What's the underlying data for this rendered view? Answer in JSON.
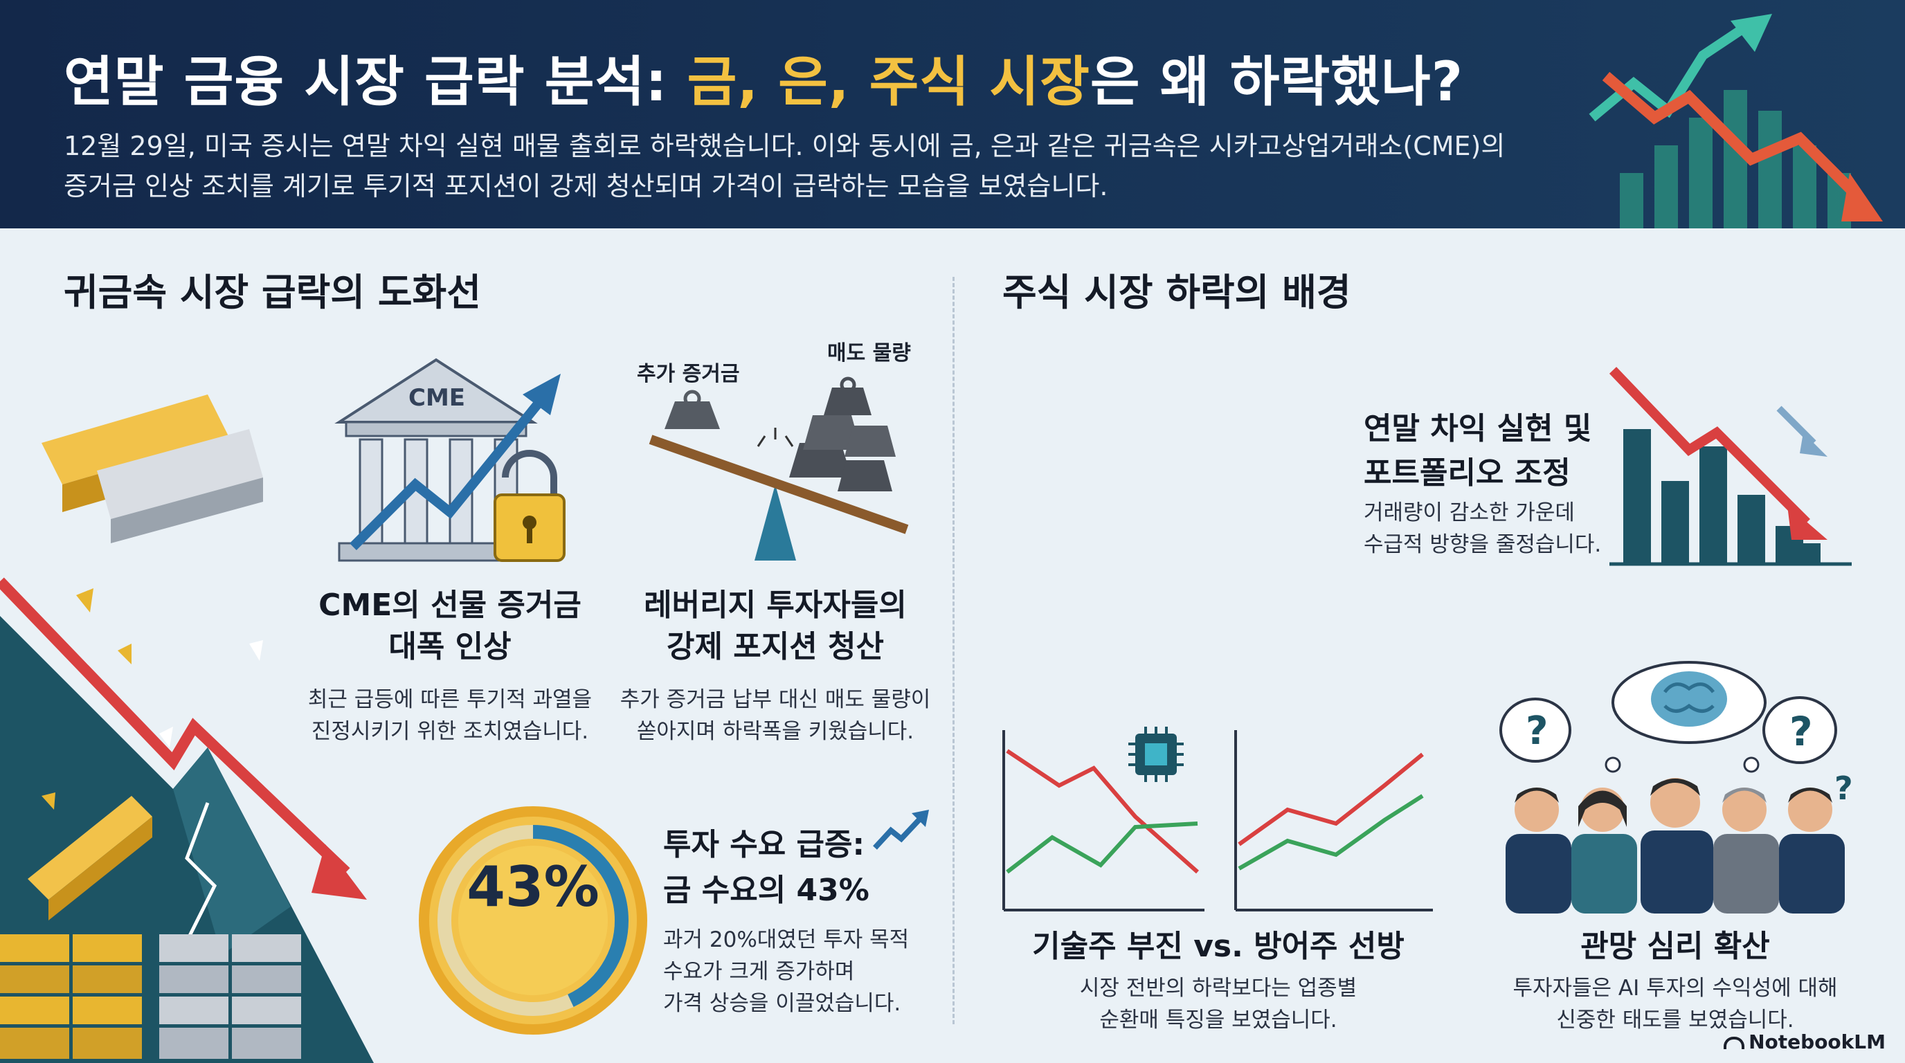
{
  "header": {
    "title_part1": "연말 금융 시장 급락 분석: ",
    "title_highlight": "금, 은, 주식 시장",
    "title_part2": "은 왜 하락했나?",
    "subtitle_line1": "12월 29일, 미국 증시는 연말 차익 실현 매물 출회로 하락했습니다. 이와 동시에 금, 은과 같은 귀금속은 시카고상업거래소(CME)의",
    "subtitle_line2": "증거금 인상 조치를 계기로 투기적 포지션이 강제 청산되며 가격이 급락하는 모습을 보였습니다."
  },
  "left_section": {
    "title": "귀금속 시장 급락의 도화선",
    "cme_card": {
      "icon_label": "CME",
      "title_line1": "CME의 선물 증거금",
      "title_line2": "대폭 인상",
      "desc_line1": "최근 급등에 따른 투기적 과열을",
      "desc_line2": "진정시키기 위한 조치였습니다."
    },
    "leverage_card": {
      "label_left": "추가 증거금",
      "label_right": "매도 물량",
      "title_line1": "레버리지 투자자들의",
      "title_line2": "강제 포지션 청산",
      "desc_line1": "추가 증거금 납부 대신 매도 물량이",
      "desc_line2": "쏟아지며 하락폭을 키웠습니다."
    },
    "demand_card": {
      "percent_label": "43%",
      "percent_value": 43,
      "title_line1": "투자 수요 급증:",
      "title_line2": "금 수요의 43%",
      "desc_line1": "과거 20%대였던 투자 목적",
      "desc_line2": "수요가 크게 증가하며",
      "desc_line3": "가격 상승을 이끌었습니다."
    }
  },
  "right_section": {
    "title": "주식 시장 하락의 배경",
    "profit_card": {
      "title_line1": "연말 차익 실현 및",
      "title_line2": "포트폴리오 조정",
      "desc_line1": "거래량이 감소한 가운데",
      "desc_line2": "수급적 방향을 줄정습니다."
    },
    "tech_card": {
      "title": "기술주 부진 vs. 방어주 선방",
      "desc_line1": "시장 전반의 하락보다는 업종별",
      "desc_line2": "순환매 특징을 보였습니다."
    },
    "sentiment_card": {
      "title": "관망 심리 확산",
      "desc_line1": "투자자들은 AI 투자의 수익성에 대해",
      "desc_line2": "신중한 태도를 보였습니다."
    }
  },
  "footer": {
    "logo": "NotebookLM"
  },
  "colors": {
    "header_bg": "#13284a",
    "highlight": "#f3c141",
    "down_red": "#d94040",
    "up_green": "#3aa35a",
    "teal": "#1f5c6e",
    "gold": "#e8b630"
  }
}
